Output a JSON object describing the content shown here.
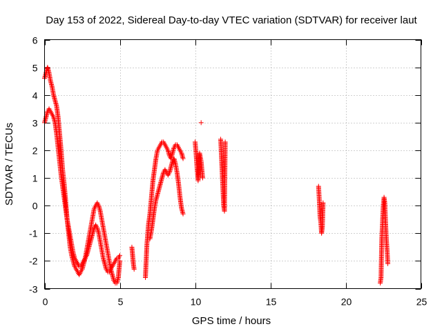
{
  "chart_data": {
    "type": "scatter",
    "title": "Day 153 of 2022, Sidereal Day-to-day VTEC variation (SDTVAR) for receiver laut",
    "xlabel": "GPS time / hours",
    "ylabel": "SDTVAR / TECUs",
    "xlim": [
      0,
      25
    ],
    "ylim": [
      -3,
      6
    ],
    "xticks": [
      0,
      5,
      10,
      15,
      20,
      25
    ],
    "yticks": [
      -3,
      -2,
      -1,
      0,
      1,
      2,
      3,
      4,
      5,
      6
    ],
    "grid": true,
    "marker": "plus",
    "color": "#ff0000",
    "series": [
      {
        "name": "SDTVAR",
        "segments": [
          {
            "x": [
              0.0,
              0.1,
              0.2,
              0.3,
              0.4,
              0.5,
              0.6,
              0.7,
              0.8,
              0.9,
              1.0,
              1.1,
              1.2,
              1.3,
              1.4,
              1.5,
              1.6,
              1.7,
              1.8,
              1.9,
              2.0,
              2.1,
              2.2,
              2.3,
              2.4,
              2.5,
              2.6,
              2.7,
              2.8,
              2.9,
              3.0,
              3.1,
              3.2,
              3.3,
              3.4,
              3.5,
              3.6,
              3.7,
              3.8,
              3.9,
              4.0,
              4.1,
              4.2,
              4.3,
              4.4,
              4.5,
              4.6,
              4.7,
              4.8,
              4.9,
              5.0
            ],
            "y": [
              4.6,
              4.8,
              5.0,
              4.8,
              4.5,
              4.3,
              4.0,
              3.8,
              3.6,
              3.2,
              2.6,
              2.0,
              1.3,
              0.8,
              0.2,
              -0.5,
              -1.0,
              -1.5,
              -1.8,
              -2.0,
              -2.2,
              -2.3,
              -2.4,
              -2.5,
              -2.4,
              -2.3,
              -2.1,
              -1.9,
              -1.6,
              -1.3,
              -1.0,
              -0.7,
              -0.4,
              -0.1,
              0.0,
              0.1,
              0.0,
              -0.2,
              -0.5,
              -0.8,
              -1.1,
              -1.4,
              -1.7,
              -2.0,
              -2.3,
              -2.5,
              -2.7,
              -2.8,
              -2.8,
              -2.6,
              -2.0
            ]
          },
          {
            "x": [
              0.0,
              0.1,
              0.2,
              0.3,
              0.4,
              0.5,
              0.6,
              0.7,
              0.8,
              0.9,
              1.0,
              1.1,
              1.2,
              1.3,
              1.4,
              1.5,
              1.6,
              1.7,
              1.8,
              1.9,
              2.0,
              2.1,
              2.2,
              2.3,
              2.4,
              2.5,
              2.6,
              2.7,
              2.8,
              2.9,
              3.0,
              3.1,
              3.2,
              3.3,
              3.4,
              3.5,
              3.6,
              3.7,
              3.8,
              3.9,
              4.0,
              4.1,
              4.2,
              4.3,
              4.4,
              4.5,
              4.6,
              4.7,
              4.8,
              4.9,
              5.0
            ],
            "y": [
              3.0,
              3.2,
              3.4,
              3.5,
              3.4,
              3.3,
              3.2,
              3.0,
              2.6,
              2.1,
              1.6,
              1.1,
              0.7,
              0.3,
              -0.1,
              -0.5,
              -0.8,
              -1.1,
              -1.4,
              -1.7,
              -1.9,
              -2.0,
              -2.1,
              -2.2,
              -2.2,
              -2.1,
              -2.0,
              -1.9,
              -1.8,
              -1.6,
              -1.4,
              -1.2,
              -1.0,
              -0.8,
              -0.7,
              -0.8,
              -1.0,
              -1.3,
              -1.6,
              -1.9,
              -2.1,
              -2.3,
              -2.4,
              -2.4,
              -2.3,
              -2.2,
              -2.1,
              -2.0,
              -1.9,
              -1.9,
              -1.8
            ]
          },
          {
            "x": [
              5.8,
              5.9,
              5.95
            ],
            "y": [
              -1.5,
              -2.1,
              -2.3
            ]
          },
          {
            "x": [
              6.7,
              6.8,
              6.9,
              7.0,
              7.1,
              7.2,
              7.3,
              7.4,
              7.5,
              7.6,
              7.7,
              7.8,
              7.9,
              8.0,
              8.1,
              8.2,
              8.3,
              8.4,
              8.5,
              8.6,
              8.7,
              8.8,
              8.9,
              9.0,
              9.1,
              9.2
            ],
            "y": [
              -2.6,
              -1.4,
              -0.7,
              -0.3,
              0.3,
              0.9,
              1.3,
              1.7,
              2.0,
              2.1,
              2.2,
              2.3,
              2.3,
              2.2,
              2.1,
              2.0,
              1.8,
              1.7,
              1.9,
              2.1,
              2.2,
              2.2,
              2.1,
              2.0,
              1.9,
              1.7
            ]
          },
          {
            "x": [
              7.0,
              7.1,
              7.2,
              7.3,
              7.4,
              7.5,
              7.6,
              7.7,
              7.8,
              7.9,
              8.0,
              8.1,
              8.2,
              8.3,
              8.4,
              8.5,
              8.6,
              8.7,
              8.8,
              8.9,
              9.0,
              9.1,
              9.2
            ],
            "y": [
              -1.2,
              -0.9,
              -0.5,
              -0.1,
              0.2,
              0.4,
              0.6,
              0.8,
              1.0,
              1.2,
              1.3,
              1.2,
              1.1,
              1.2,
              1.4,
              1.6,
              1.7,
              1.5,
              1.2,
              0.8,
              0.3,
              -0.1,
              -0.3
            ]
          },
          {
            "x": [
              10.0,
              10.05,
              10.1,
              10.15,
              10.2,
              10.3,
              10.4,
              10.5
            ],
            "y": [
              2.3,
              2.0,
              1.6,
              1.2,
              0.9,
              1.9,
              1.6,
              1.0
            ]
          },
          {
            "x": [
              11.7,
              11.75,
              11.8,
              11.85,
              11.9,
              11.95,
              12.0
            ],
            "y": [
              2.4,
              1.8,
              1.2,
              0.6,
              0.0,
              -0.2,
              2.3
            ]
          },
          {
            "x": [
              18.2,
              18.25,
              18.3,
              18.35,
              18.4,
              18.45,
              18.5
            ],
            "y": [
              0.7,
              0.2,
              -0.4,
              -0.6,
              -1.0,
              -0.8,
              0.1
            ]
          },
          {
            "x": [
              22.3,
              22.35,
              22.4,
              22.45,
              22.5,
              22.55,
              22.6,
              22.65,
              22.7,
              22.75,
              22.8
            ],
            "y": [
              -2.8,
              -2.6,
              -1.2,
              -0.6,
              0.0,
              0.3,
              0.1,
              -0.6,
              -1.2,
              -1.6,
              -2.1
            ]
          }
        ]
      }
    ],
    "isolated_points": [
      {
        "x": 10.4,
        "y": 3.0
      }
    ]
  }
}
